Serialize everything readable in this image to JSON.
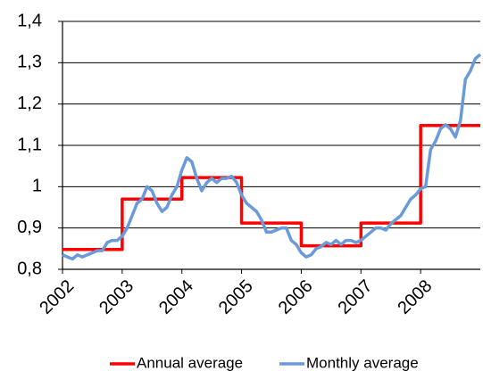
{
  "chart_data": {
    "type": "line",
    "xlim": [
      2002,
      2009
    ],
    "xticks": [
      2002,
      2003,
      2004,
      2005,
      2006,
      2007,
      2008
    ],
    "ylim": [
      0.8,
      1.4
    ],
    "yticks": [
      {
        "value": 0.8,
        "label": "0,8"
      },
      {
        "value": 0.9,
        "label": "0,9"
      },
      1,
      {
        "value": 1.1,
        "label": "1,1"
      },
      {
        "value": 1.2,
        "label": "1,2"
      },
      {
        "value": 1.3,
        "label": "1,3"
      },
      {
        "value": 1.4,
        "label": "1,4"
      }
    ],
    "grid": true,
    "legend": "bottom",
    "series": [
      {
        "name": "Annual average",
        "color": "#ff0000",
        "x": [
          2002,
          2003,
          2003,
          2004,
          2004,
          2005,
          2005,
          2006,
          2006,
          2007,
          2007,
          2008,
          2008,
          2009
        ],
        "values": [
          0.848,
          0.848,
          0.97,
          0.97,
          1.022,
          1.022,
          0.912,
          0.912,
          0.857,
          0.857,
          0.912,
          0.912,
          1.148,
          1.148
        ]
      },
      {
        "name": "Monthly average",
        "color": "#6a9ad8",
        "x": [
          2002,
          2002.083,
          2002.167,
          2002.25,
          2002.333,
          2002.417,
          2002.5,
          2002.583,
          2002.667,
          2002.75,
          2002.833,
          2002.917,
          2003,
          2003.083,
          2003.167,
          2003.25,
          2003.333,
          2003.417,
          2003.5,
          2003.583,
          2003.667,
          2003.75,
          2003.833,
          2003.917,
          2004,
          2004.083,
          2004.167,
          2004.25,
          2004.333,
          2004.417,
          2004.5,
          2004.583,
          2004.667,
          2004.75,
          2004.833,
          2004.917,
          2005,
          2005.083,
          2005.167,
          2005.25,
          2005.333,
          2005.417,
          2005.5,
          2005.583,
          2005.667,
          2005.75,
          2005.833,
          2005.917,
          2006,
          2006.083,
          2006.167,
          2006.25,
          2006.333,
          2006.417,
          2006.5,
          2006.583,
          2006.667,
          2006.75,
          2006.833,
          2006.917,
          2007,
          2007.083,
          2007.167,
          2007.25,
          2007.333,
          2007.417,
          2007.5,
          2007.583,
          2007.667,
          2007.75,
          2007.833,
          2007.917,
          2008,
          2008.083,
          2008.167,
          2008.25,
          2008.333,
          2008.417,
          2008.5,
          2008.583,
          2008.667,
          2008.75,
          2008.833,
          2008.917,
          2009
        ],
        "values": [
          0.835,
          0.83,
          0.825,
          0.835,
          0.83,
          0.835,
          0.84,
          0.845,
          0.845,
          0.865,
          0.87,
          0.87,
          0.88,
          0.9,
          0.93,
          0.96,
          0.97,
          1.0,
          0.99,
          0.96,
          0.94,
          0.95,
          0.98,
          1.0,
          1.04,
          1.07,
          1.06,
          1.02,
          0.99,
          1.01,
          1.02,
          1.01,
          1.02,
          1.02,
          1.025,
          1.01,
          0.98,
          0.96,
          0.95,
          0.94,
          0.92,
          0.89,
          0.89,
          0.895,
          0.9,
          0.9,
          0.87,
          0.86,
          0.84,
          0.83,
          0.835,
          0.85,
          0.855,
          0.865,
          0.86,
          0.87,
          0.86,
          0.87,
          0.87,
          0.865,
          0.87,
          0.88,
          0.89,
          0.9,
          0.9,
          0.895,
          0.91,
          0.92,
          0.93,
          0.95,
          0.97,
          0.98,
          0.995,
          1.0,
          1.09,
          1.11,
          1.14,
          1.15,
          1.14,
          1.12,
          1.16,
          1.26,
          1.28,
          1.31,
          1.32
        ]
      }
    ]
  }
}
